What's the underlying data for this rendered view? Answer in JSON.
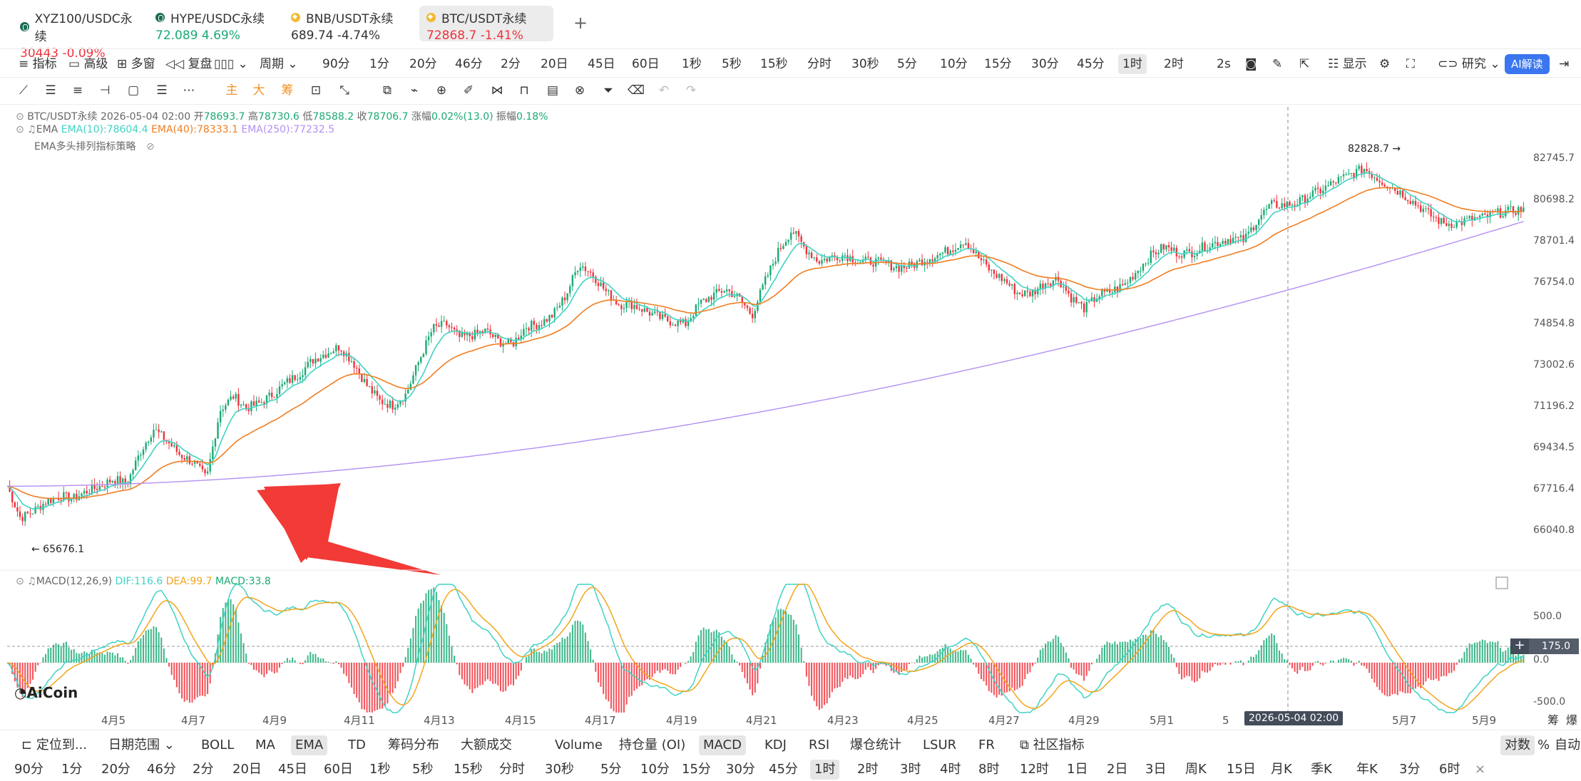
{
  "tabs": [
    {
      "name": "XYZ100/USDC永续",
      "price": "30443",
      "change": "-0.09%",
      "dir": "down",
      "icon": "dark"
    },
    {
      "name": "HYPE/USDC永续",
      "price": "72.089",
      "change": "4.69%",
      "dir": "up",
      "icon": "dark"
    },
    {
      "name": "BNB/USDT永续",
      "price": "689.74",
      "change": "-4.74%",
      "dir": "neutral",
      "icon": "ora"
    },
    {
      "name": "BTC/USDT永续",
      "price": "72868.7",
      "change": "-1.41%",
      "dir": "down",
      "icon": "ora"
    }
  ],
  "toolbar": {
    "indicator": "指标",
    "advanced": "高级",
    "multi": "多窗",
    "replay": "复盘",
    "period": "周期",
    "intervals": [
      "90分",
      "1分",
      "20分",
      "46分",
      "2分",
      "20日",
      "45日",
      "60日",
      "1秒",
      "5秒",
      "15秒",
      "分时",
      "30秒",
      "5分",
      "10分",
      "15分",
      "30分",
      "45分",
      "1时",
      "2时"
    ],
    "selected_interval": "1时",
    "speed": "2s",
    "display": "显示",
    "research": "研究",
    "ai": "AI解读"
  },
  "draw_tools": {
    "main": "主",
    "big": "大",
    "chip": "筹"
  },
  "info": {
    "symbol": "BTC/USDT永续",
    "time": "2026-05-04 02:00",
    "open_label": "开",
    "open": "78693.7",
    "high_label": "高",
    "high": "78730.6",
    "low_label": "低",
    "low": "78588.2",
    "close_label": "收",
    "close": "78706.7",
    "change_label": "涨幅",
    "change": "0.02%(13.0)",
    "amp_label": "振幅",
    "amp": "0.18%",
    "ema_name": "EMA",
    "ema10": "EMA(10):78604.4",
    "ema40": "EMA(40):78333.1",
    "ema250": "EMA(250):77232.5",
    "strategy": "EMA多头排列指标策略",
    "macd_name": "MACD(12,26,9)",
    "dif": "DIF:116.6",
    "dea": "DEA:99.7",
    "macd": "MACD:33.8"
  },
  "colors": {
    "up": "#1aaa74",
    "down": "#f0323c",
    "ema10": "#3fd3c4",
    "ema40": "#f07d22",
    "ema250": "#b38ff2",
    "dea": "#f2a51c",
    "arrow": "#f23a36"
  },
  "chart_data": {
    "type": "candlestick",
    "y_ticks": [
      "82745.7",
      "80698.2",
      "78701.4",
      "76754.0",
      "74854.8",
      "73002.6",
      "71196.2",
      "69434.5",
      "67716.4",
      "66040.8"
    ],
    "macd_ticks": [
      "500.0",
      "0.0",
      "-500.0"
    ],
    "x_ticks": [
      "4月5",
      "4月7",
      "4月9",
      "4月11",
      "4月13",
      "4月15",
      "4月17",
      "4月19",
      "4月21",
      "4月23",
      "4月25",
      "4月27",
      "4月29",
      "5月1",
      "5",
      "5月7",
      "5月9"
    ],
    "high_label": "82828.7",
    "low_label": "65676.1",
    "crosshair_date": "2026-05-04 02:00",
    "crosshair_value": "175.0",
    "ylim": [
      65000,
      83500
    ],
    "close_path": [
      67800,
      66500,
      66800,
      67200,
      67400,
      67300,
      67600,
      67800,
      68100,
      67900,
      69200,
      70200,
      69700,
      69100,
      68800,
      68100,
      71000,
      71600,
      71100,
      71300,
      71700,
      72200,
      72600,
      73200,
      73500,
      73800,
      73100,
      72100,
      71400,
      71200,
      71700,
      73200,
      74600,
      74800,
      74200,
      74300,
      74500,
      74000,
      73900,
      74700,
      74800,
      75200,
      76100,
      77600,
      77100,
      76300,
      75700,
      75700,
      75400,
      75100,
      74900,
      74800,
      75700,
      76100,
      76400,
      76000,
      75200,
      76800,
      78200,
      79200,
      78300,
      77700,
      77900,
      78000,
      77700,
      77700,
      77600,
      77400,
      77500,
      77800,
      78000,
      78300,
      78700,
      77900,
      77200,
      76800,
      76200,
      76200,
      76700,
      76900,
      76000,
      75500,
      76100,
      76300,
      76600,
      77300,
      78000,
      78400,
      78100,
      78100,
      78400,
      78600,
      78800,
      78700,
      79700,
      80400,
      80400,
      80500,
      80900,
      81200,
      81600,
      81900,
      82200,
      81700,
      81300,
      80900,
      80400,
      79900,
      79500,
      79500,
      79700,
      79800,
      80000,
      80100,
      80200
    ]
  },
  "bottom": {
    "locate": "定位到...",
    "range": "日期范围",
    "indicators": [
      "BOLL",
      "MA",
      "EMA",
      "TD",
      "筹码分布",
      "大额成交"
    ],
    "selected_indicator": "EMA",
    "sub_indicators": [
      "Volume",
      "持仓量 (OI)",
      "MACD",
      "KDJ",
      "RSI",
      "爆仓统计",
      "LSUR",
      "FR"
    ],
    "selected_sub": "MACD",
    "community": "社区指标",
    "log": "对数",
    "pct": "%",
    "auto": "自动",
    "right_labels": [
      "筹",
      "爆"
    ]
  },
  "timeframes": [
    "90分",
    "1分",
    "20分",
    "46分",
    "2分",
    "20日",
    "45日",
    "60日",
    "1秒",
    "5秒",
    "15秒",
    "分时",
    "30秒",
    "5分",
    "10分",
    "15分",
    "30分",
    "45分",
    "1时",
    "2时",
    "3时",
    "4时",
    "8时",
    "12时",
    "1日",
    "2日",
    "3日",
    "周K",
    "15日",
    "月K",
    "季K",
    "年K",
    "3分",
    "6时"
  ],
  "selected_tf": "1时",
  "logo_text": "AiCoin"
}
